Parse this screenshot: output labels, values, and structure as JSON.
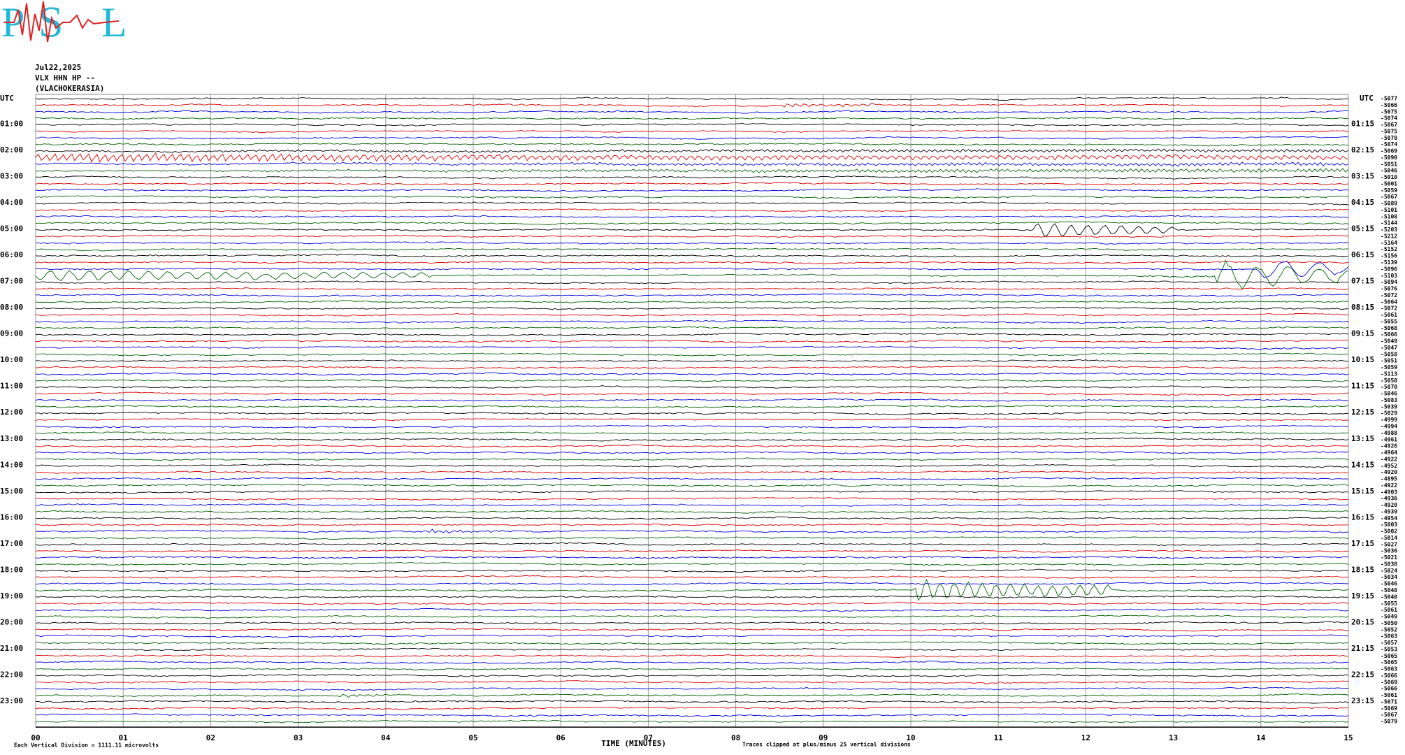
{
  "header": {
    "logo": [
      "P",
      "S",
      "L"
    ],
    "date": "Jul22,2025",
    "station": "VLX HHN HP --",
    "location": "(VLACHOKERASIA)"
  },
  "left_axis": {
    "title": "UTC",
    "labels": [
      "01:00",
      "02:00",
      "03:00",
      "04:00",
      "05:00",
      "06:00",
      "07:00",
      "08:00",
      "09:00",
      "10:00",
      "11:00",
      "12:00",
      "13:00",
      "14:00",
      "15:00",
      "16:00",
      "17:00",
      "18:00",
      "19:00",
      "20:00",
      "21:00",
      "22:00",
      "23:00"
    ]
  },
  "right_axis": {
    "title": "UTC",
    "labels": [
      "01:15",
      "02:15",
      "03:15",
      "04:15",
      "05:15",
      "06:15",
      "07:15",
      "08:15",
      "09:15",
      "10:15",
      "11:15",
      "12:15",
      "13:15",
      "14:15",
      "15:15",
      "16:15",
      "17:15",
      "18:15",
      "19:15",
      "20:15",
      "21:15",
      "22:15",
      "23:15"
    ],
    "trace_offsets": [
      -5077,
      -5066,
      -5075,
      -5074,
      -5067,
      -5075,
      -5078,
      -5074,
      -5069,
      -5090,
      -5051,
      -5046,
      -5010,
      -5001,
      -5059,
      -5067,
      -5089,
      -5101,
      -5108,
      -5144,
      -5203,
      -5212,
      -5164,
      -5152,
      -5156,
      -5139,
      -5096,
      -5103,
      -5094,
      -5076,
      -5072,
      -5064,
      -5072,
      -5061,
      -5055,
      -5068,
      -5066,
      -5049,
      -5047,
      -5058,
      -5051,
      -5059,
      -5113,
      -5050,
      -5070,
      -5046,
      -5083,
      -5039,
      -5029,
      -4999,
      -4994,
      -4988,
      -4961,
      -4926,
      -4964,
      -4922,
      -4952,
      -4920,
      -4895,
      -4922,
      -4903,
      -4936,
      -4920,
      -4939,
      -4954,
      -5003,
      -5002,
      -5014,
      -5027,
      -5036,
      -5021,
      -5038,
      -5024,
      -5034,
      -5046,
      -5048,
      -5040,
      -5055,
      -5061,
      -5049,
      -5050,
      -5052,
      -5063,
      -5057,
      -5053,
      -5065,
      -5065,
      -5063,
      -5066,
      -5069,
      -5066,
      -5061,
      -5071,
      -5069,
      -5067,
      -5079
    ]
  },
  "x_axis": {
    "title": "TIME (MINUTES)",
    "ticks": [
      "00",
      "01",
      "02",
      "03",
      "04",
      "05",
      "06",
      "07",
      "08",
      "09",
      "10",
      "11",
      "12",
      "13",
      "14",
      "15"
    ]
  },
  "footer": {
    "scale_note": "Each Vertical Division = 1111.11 microvolts",
    "clip_note": "Traces clipped at plus/minus 25 vertical divisions"
  }
}
